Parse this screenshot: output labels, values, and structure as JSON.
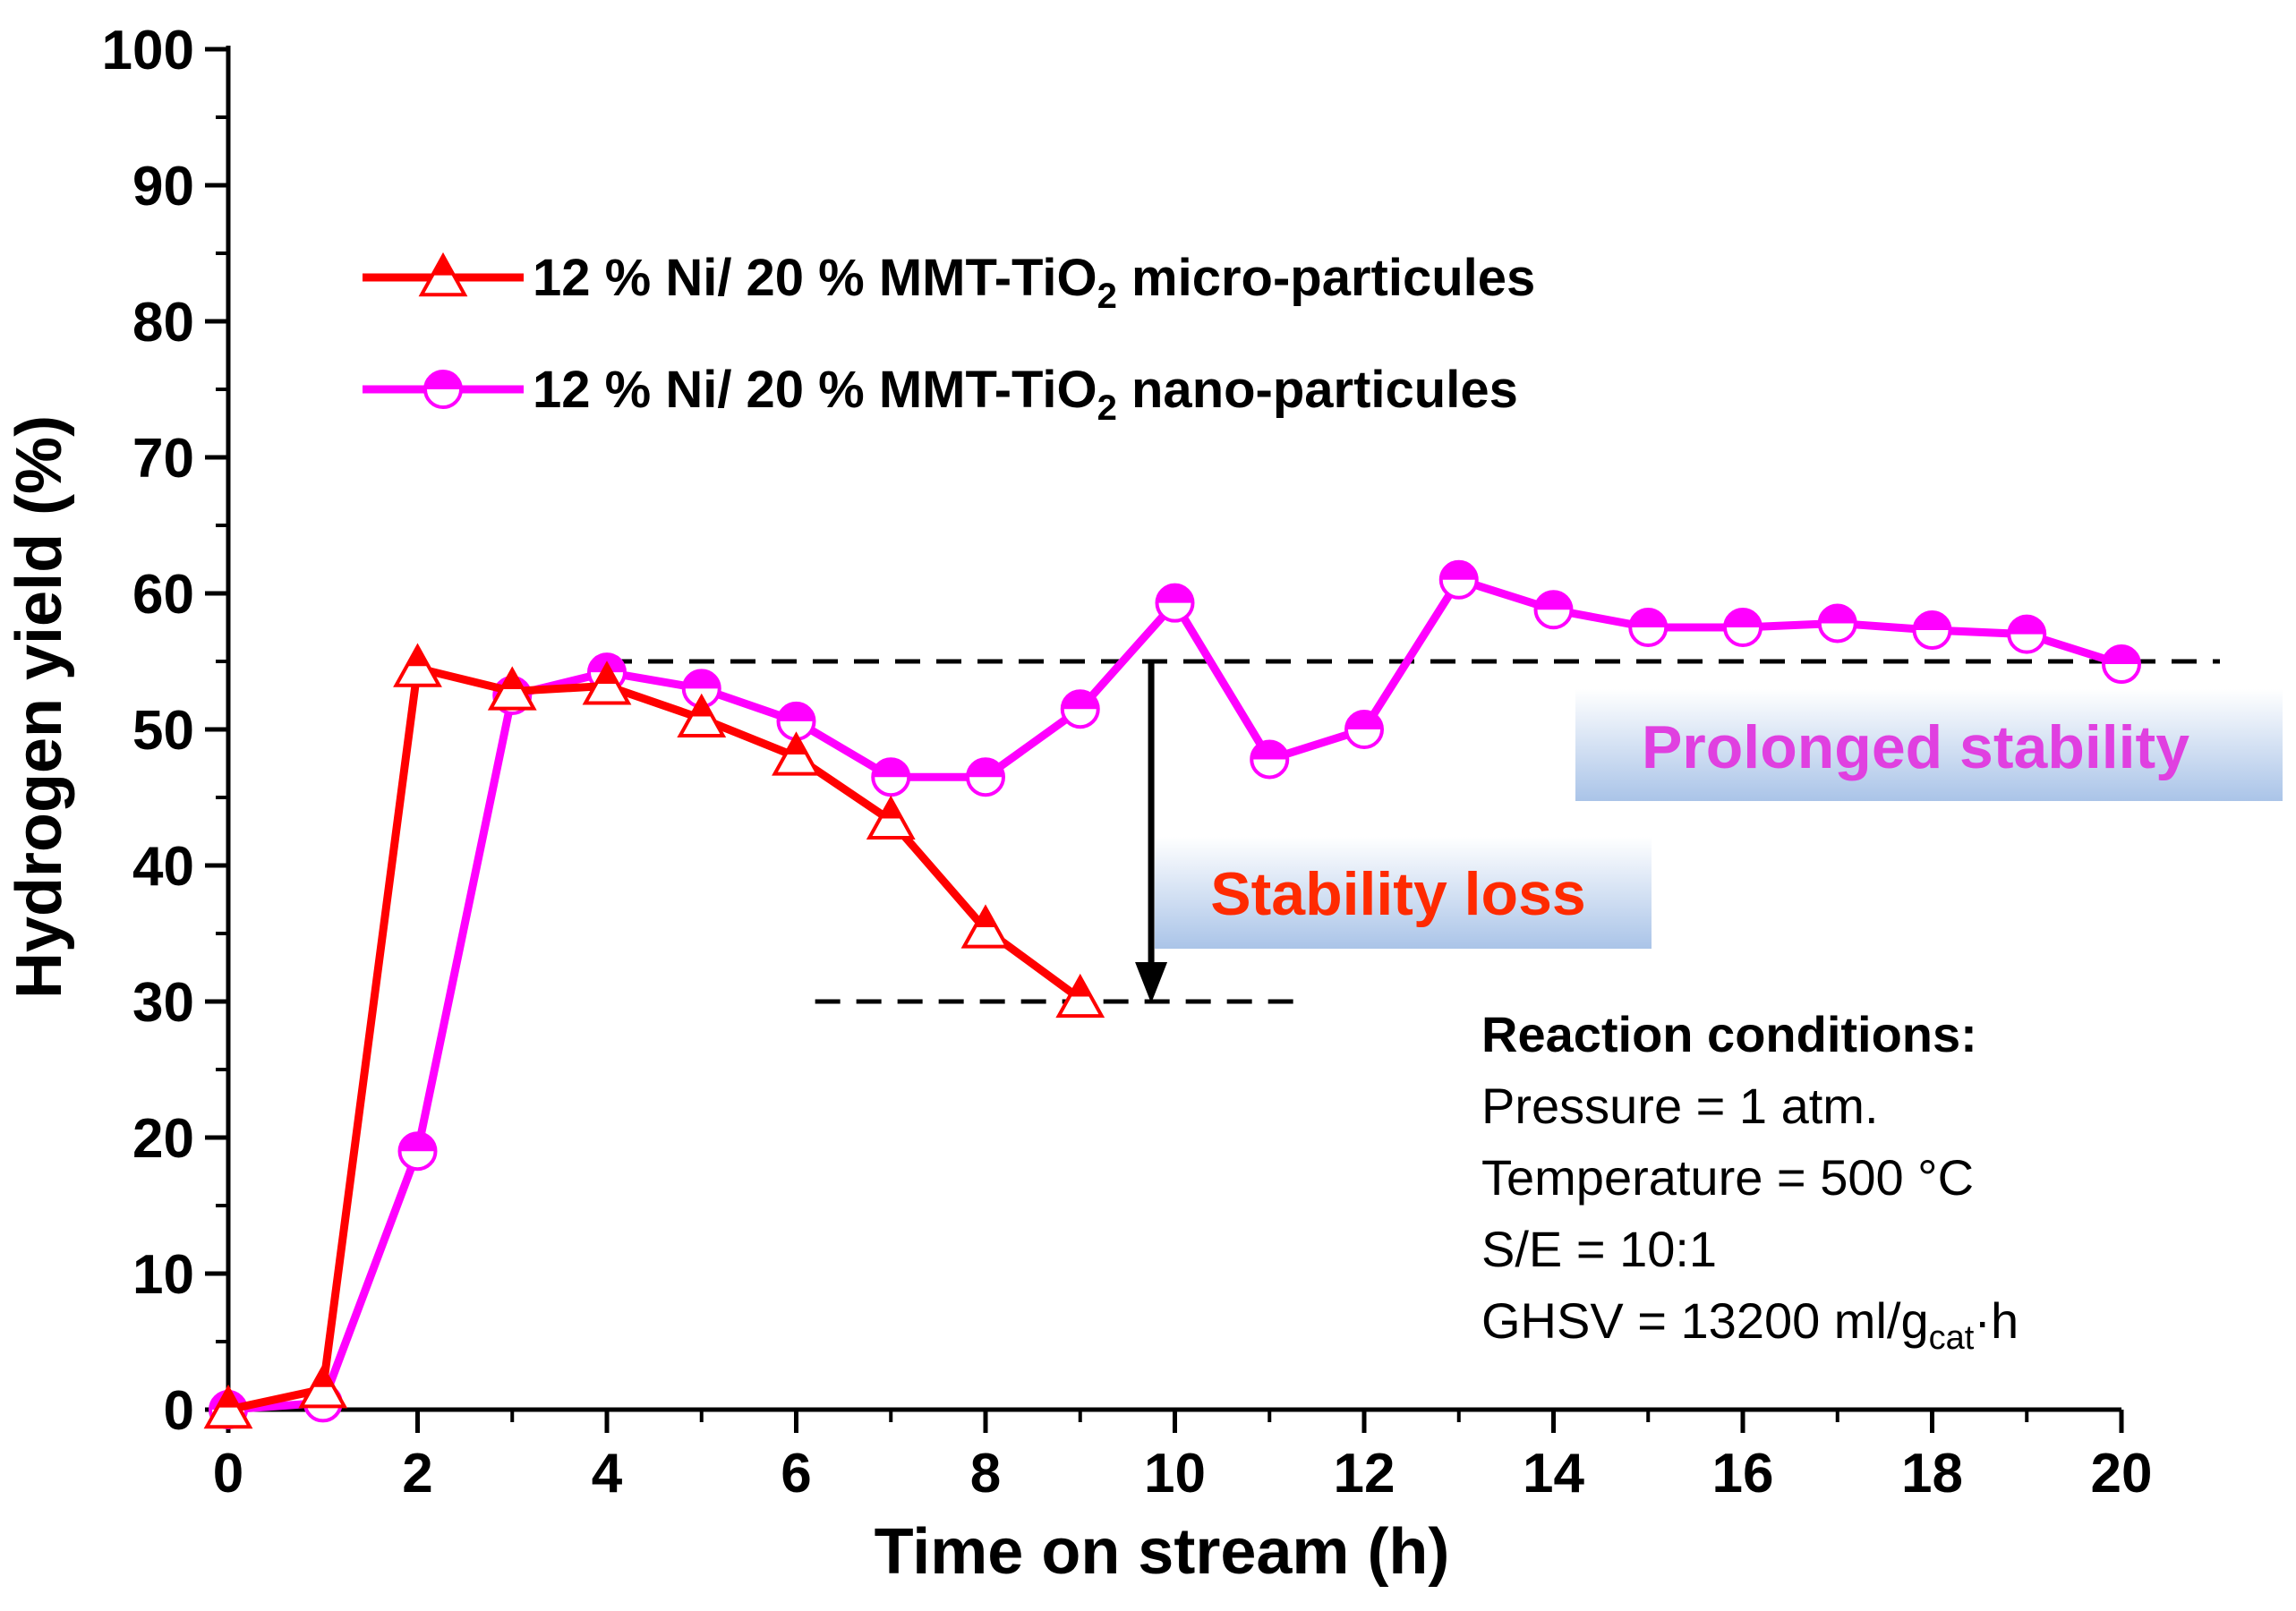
{
  "chart_data": {
    "type": "line",
    "xlabel": "Time on stream (h)",
    "ylabel": "Hydrogen yield (%)",
    "xlim": [
      0,
      20
    ],
    "ylim": [
      0,
      100
    ],
    "xticks": [
      0,
      2,
      4,
      6,
      8,
      10,
      12,
      14,
      16,
      18,
      20
    ],
    "yticks": [
      0,
      10,
      20,
      30,
      40,
      50,
      60,
      70,
      80,
      90,
      100
    ],
    "grid": false,
    "legend_position": "top-left",
    "series": [
      {
        "name": "12 % Ni/ 20 % MMT-TiO2 micro-particules",
        "legend_main": "12 % Ni/ 20 % MMT-TiO",
        "legend_sub": "2",
        "legend_tail": " micro-particules",
        "color": "#ff0000",
        "marker": "triangle",
        "x": [
          0,
          1,
          2,
          3,
          4,
          5,
          6,
          7,
          8,
          9
        ],
        "y": [
          0,
          1.5,
          54.5,
          52.8,
          53.2,
          50.8,
          48,
          43.3,
          35.3,
          30.2
        ]
      },
      {
        "name": "12 % Ni/ 20 % MMT-TiO2 nano-particules",
        "legend_main": "12 % Ni/ 20 % MMT-TiO",
        "legend_sub": "2",
        "legend_tail": " nano-particules",
        "color": "#ff00ff",
        "marker": "circle",
        "x": [
          0,
          1,
          2,
          3,
          4,
          5,
          6,
          7,
          8,
          9,
          10,
          11,
          12,
          13,
          14,
          15,
          16,
          17,
          18,
          19,
          20
        ],
        "y": [
          0,
          0.5,
          19,
          52.5,
          54.2,
          53,
          50.6,
          46.5,
          46.5,
          51.5,
          59.3,
          47.8,
          50,
          61,
          58.8,
          57.5,
          57.5,
          57.8,
          57.3,
          57,
          54.8
        ]
      }
    ],
    "annotations": {
      "upper_dashed_y": 55,
      "lower_dashed_y": 30,
      "arrow_x": 9.75,
      "stability_loss": "Stability loss",
      "prolonged_stability": "Prolonged stability",
      "stability_loss_color": "#ff2a00",
      "prolonged_stability_color": "#e040e0",
      "box_gradient_top": "#ffffff",
      "box_gradient_bottom": "#aac4e8"
    },
    "reaction_conditions": {
      "title": "Reaction conditions:",
      "pressure": "Pressure = 1 atm.",
      "temperature": "Temperature = 500 °C",
      "se": "S/E = 10:1",
      "ghsv_main": "GHSV = 13200 ml/g",
      "ghsv_sub": "cat",
      "ghsv_tail": "·h"
    }
  }
}
